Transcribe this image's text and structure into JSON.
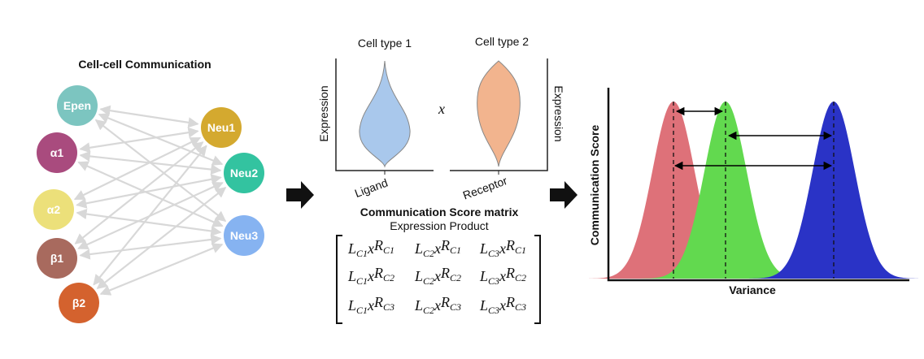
{
  "title": "Cell-cell Communication",
  "nodes_left": [
    {
      "label": "Epen"
    },
    {
      "label": "α1"
    },
    {
      "label": "α2"
    },
    {
      "label": "β1"
    },
    {
      "label": "β2"
    }
  ],
  "nodes_right": [
    {
      "label": "Neu1"
    },
    {
      "label": "Neu2"
    },
    {
      "label": "Neu3"
    }
  ],
  "expression_panel": {
    "cell_type_1": "Cell type 1",
    "cell_type_2": "Cell type 2",
    "y_label_left": "Expression",
    "y_label_right": "Expression",
    "operator": "x",
    "ligand": "Ligand",
    "receptor": "Receptor"
  },
  "matrix": {
    "title": "Communication Score matrix",
    "subtitle": "Expression Product",
    "rows": [
      [
        {
          "l": "L",
          "ls": "C1",
          "op": "x",
          "r": "R",
          "rs": "C1"
        },
        {
          "l": "L",
          "ls": "C2",
          "op": "x",
          "r": "R",
          "rs": "C1"
        },
        {
          "l": "L",
          "ls": "C3",
          "op": "x",
          "r": "R",
          "rs": "C1"
        }
      ],
      [
        {
          "l": "L",
          "ls": "C1",
          "op": "x",
          "r": "R",
          "rs": "C2"
        },
        {
          "l": "L",
          "ls": "C2",
          "op": "x",
          "r": "R",
          "rs": "C2"
        },
        {
          "l": "L",
          "ls": "C3",
          "op": "x",
          "r": "R",
          "rs": "C2"
        }
      ],
      [
        {
          "l": "L",
          "ls": "C1",
          "op": "x",
          "r": "R",
          "rs": "C3"
        },
        {
          "l": "L",
          "ls": "C2",
          "op": "x",
          "r": "R",
          "rs": "C3"
        },
        {
          "l": "L",
          "ls": "C3",
          "op": "x",
          "r": "R",
          "rs": "C3"
        }
      ]
    ]
  },
  "variance_panel": {
    "y_label": "Communication Score",
    "x_label": "Variance"
  }
}
